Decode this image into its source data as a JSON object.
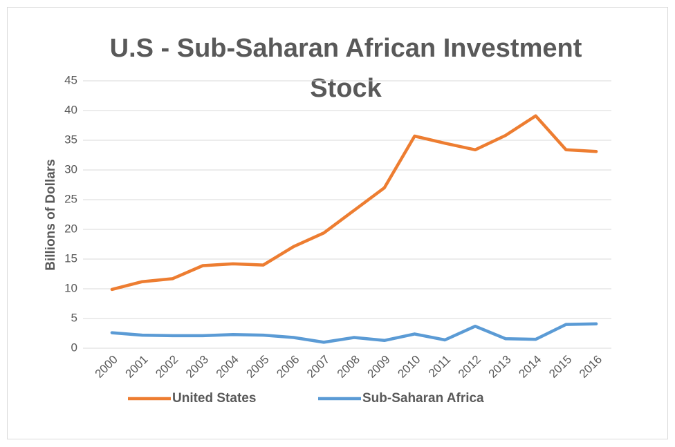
{
  "chart_data": {
    "type": "line",
    "title": "U.S - Sub-Saharan African Investment Stock",
    "y_label": "Billions of Dollars",
    "categories": [
      "2000",
      "2001",
      "2002",
      "2003",
      "2004",
      "2005",
      "2006",
      "2007",
      "2008",
      "2009",
      "2010",
      "2011",
      "2012",
      "2013",
      "2014",
      "2015",
      "2016"
    ],
    "series": [
      {
        "name": "United States",
        "color": "#ed7d31",
        "values": [
          9.9,
          11.2,
          11.7,
          13.9,
          14.2,
          14.0,
          17.1,
          19.4,
          23.2,
          27.0,
          35.7,
          34.5,
          33.4,
          35.8,
          39.1,
          33.4,
          33.1
        ]
      },
      {
        "name": "Sub-Saharan Africa",
        "color": "#5b9bd5",
        "values": [
          2.6,
          2.2,
          2.1,
          2.1,
          2.3,
          2.2,
          1.8,
          1.0,
          1.8,
          1.3,
          2.4,
          1.4,
          3.7,
          1.6,
          1.5,
          4.0,
          4.1
        ]
      }
    ],
    "ylim": [
      0,
      45
    ],
    "yticks": [
      0,
      5,
      10,
      15,
      20,
      25,
      30,
      35,
      40,
      45
    ],
    "grid": true,
    "legend": "bottom"
  }
}
